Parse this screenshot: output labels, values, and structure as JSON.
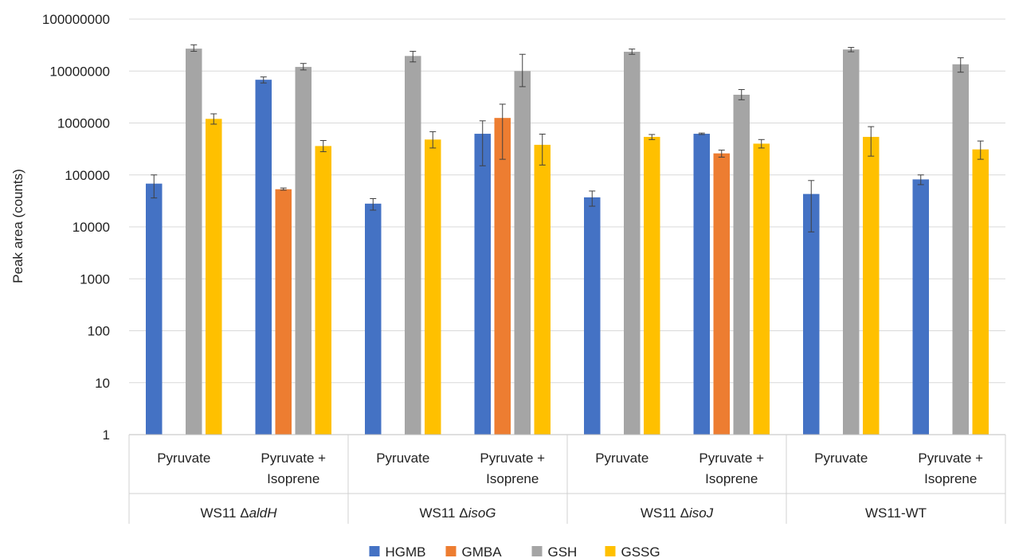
{
  "chart_data": {
    "type": "bar",
    "scale": "log",
    "ylabel": "Peak area (counts)",
    "ylim": [
      1,
      100000000
    ],
    "yticks": [
      "100000000",
      "10000000",
      "1000000",
      "100000",
      "10000",
      "1000",
      "100",
      "10",
      "1"
    ],
    "grid": true,
    "legend_position": "bottom",
    "groups": [
      {
        "prefix": "WS11 Δ",
        "suffix": "aldH",
        "italic": true
      },
      {
        "prefix": "WS11 Δ",
        "suffix": "isoG",
        "italic": true
      },
      {
        "prefix": "WS11 Δ",
        "suffix": "isoJ",
        "italic": true
      },
      {
        "prefix": "WS11-WT",
        "suffix": "",
        "italic": false
      }
    ],
    "conditions": [
      [
        "Pyruvate"
      ],
      [
        "Pyruvate +",
        "Isoprene"
      ]
    ],
    "categories": [
      "WS11 ΔaldH Pyruvate",
      "WS11 ΔaldH Pyruvate + Isoprene",
      "WS11 ΔisoG Pyruvate",
      "WS11 ΔisoG Pyruvate + Isoprene",
      "WS11 ΔisoJ Pyruvate",
      "WS11 ΔisoJ Pyruvate + Isoprene",
      "WS11-WT Pyruvate",
      "WS11-WT Pyruvate + Isoprene"
    ],
    "series": [
      {
        "name": "HGMB",
        "color": "#4472C4",
        "values": [
          68000,
          6800000,
          28000,
          620000,
          37000,
          620000,
          43000,
          82000
        ],
        "err_low": [
          36000,
          5900000,
          21000,
          150000,
          25000,
          600000,
          8000,
          65000
        ],
        "err_high": [
          100000,
          7700000,
          35000,
          1100000,
          49000,
          640000,
          78000,
          100000
        ]
      },
      {
        "name": "GMBA",
        "color": "#ED7D31",
        "values": [
          null,
          53000,
          null,
          1250000,
          null,
          260000,
          null,
          null
        ],
        "err_low": [
          null,
          51000,
          null,
          200000,
          null,
          220000,
          null,
          null
        ],
        "err_high": [
          null,
          56000,
          null,
          2300000,
          null,
          300000,
          null,
          null
        ]
      },
      {
        "name": "GSH",
        "color": "#A5A5A5",
        "values": [
          27000000,
          12000000,
          19500000,
          10000000,
          23500000,
          3500000,
          26000000,
          13500000
        ],
        "err_low": [
          24000000,
          10500000,
          15000000,
          5000000,
          21000000,
          2800000,
          23500000,
          9500000
        ],
        "err_high": [
          32000000,
          14000000,
          24000000,
          21000000,
          26500000,
          4400000,
          28500000,
          18000000
        ]
      },
      {
        "name": "GSSG",
        "color": "#FFC000",
        "values": [
          1200000,
          360000,
          480000,
          380000,
          540000,
          400000,
          540000,
          310000
        ],
        "err_low": [
          950000,
          280000,
          330000,
          155000,
          480000,
          330000,
          230000,
          200000
        ],
        "err_high": [
          1500000,
          460000,
          680000,
          610000,
          600000,
          480000,
          850000,
          450000
        ]
      }
    ]
  }
}
